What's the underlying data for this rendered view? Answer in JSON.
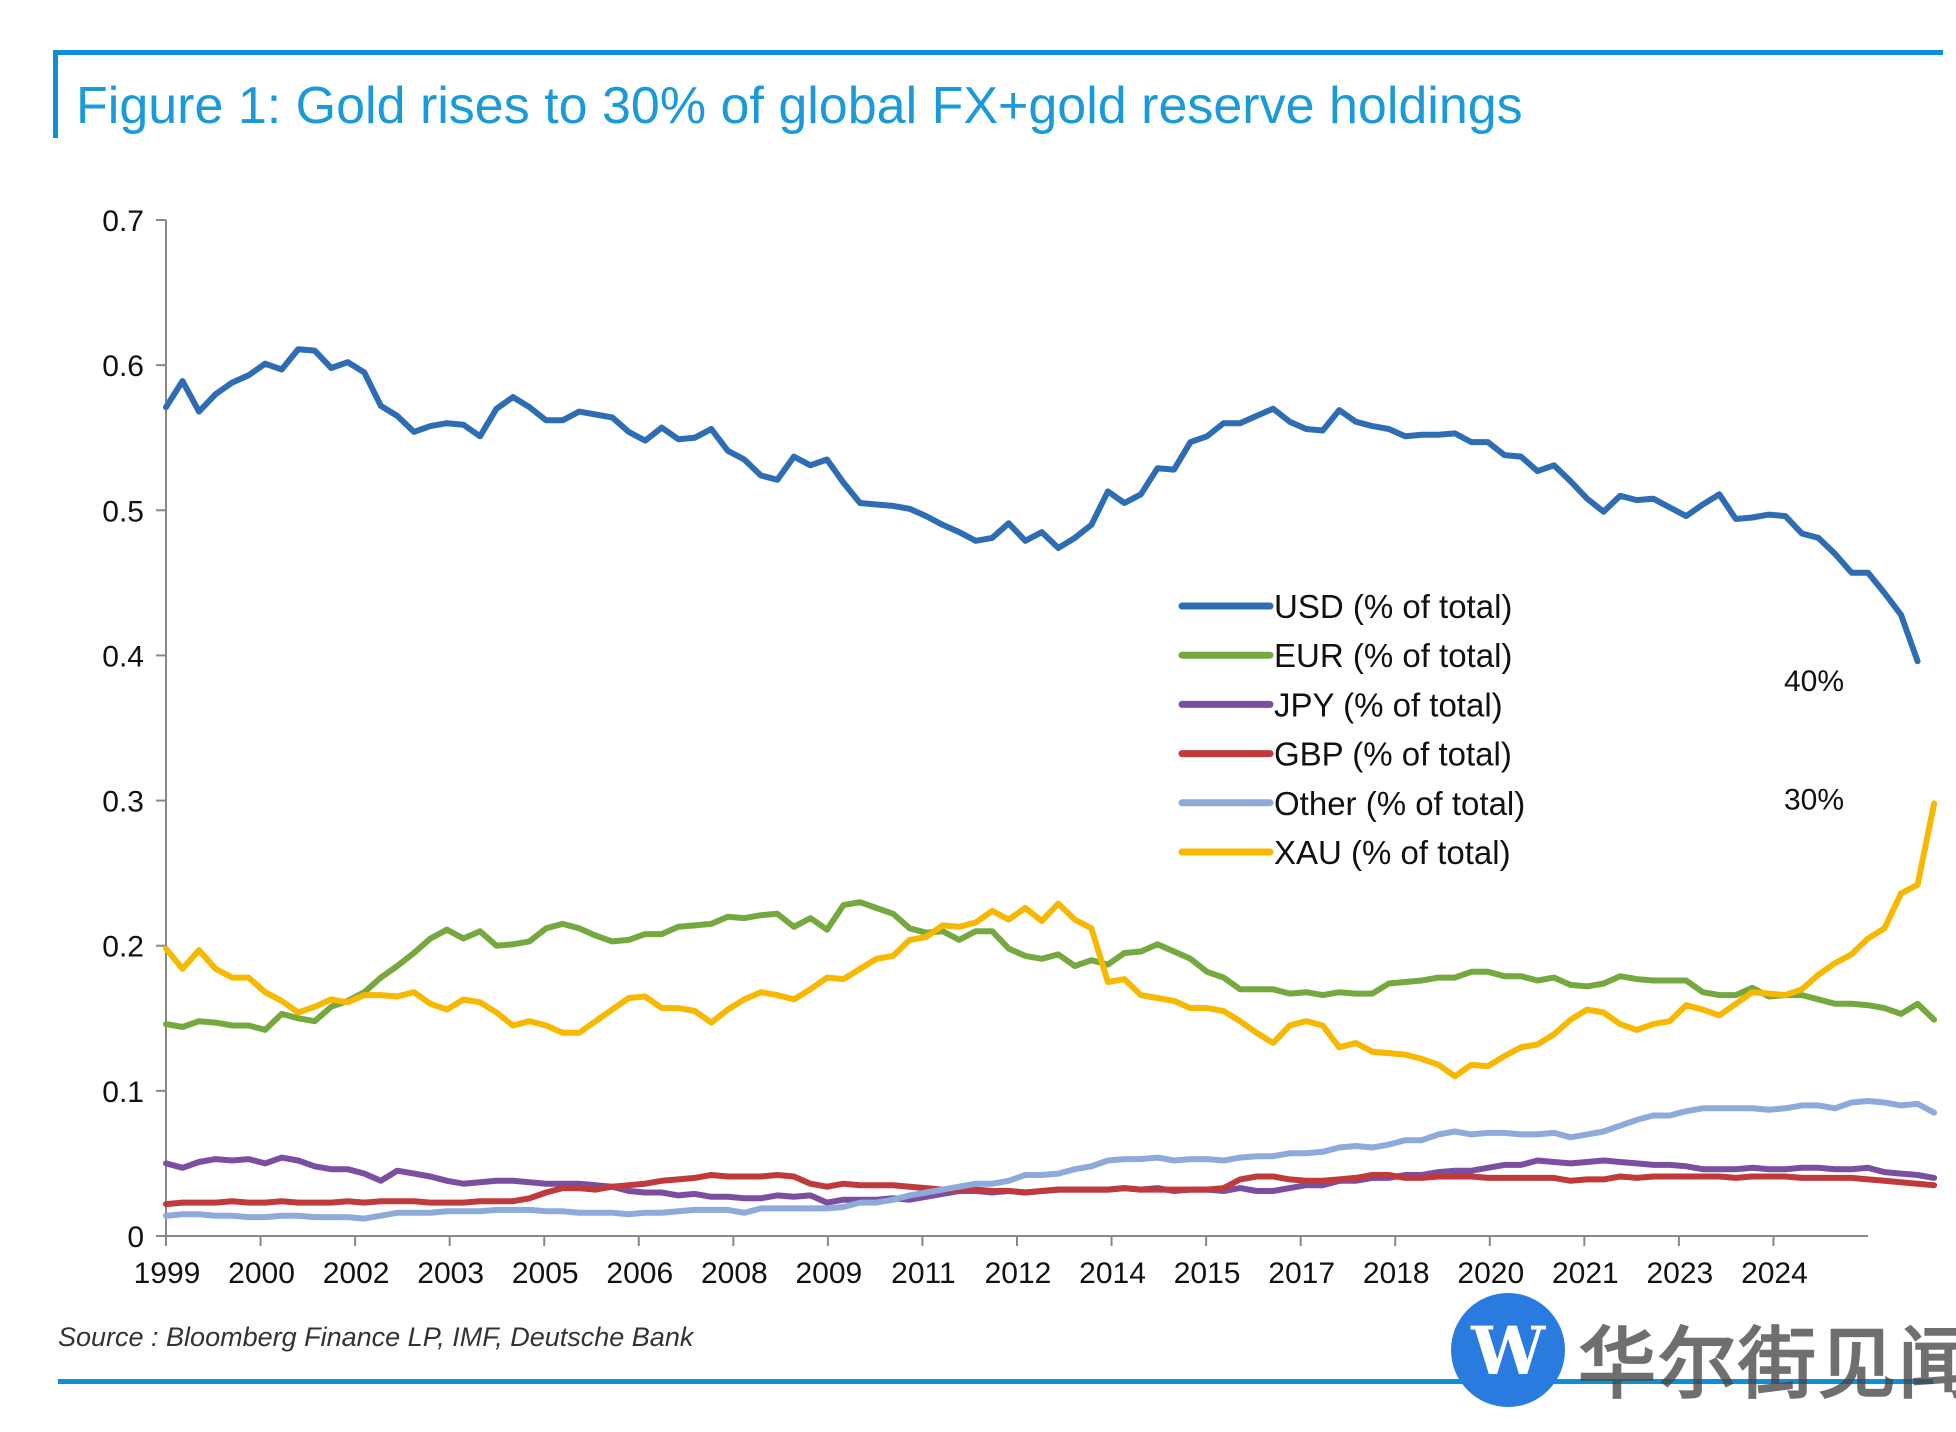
{
  "title": "Figure 1: Gold rises to 30% of global FX+gold reserve holdings",
  "source": "Source : Bloomberg Finance LP, IMF, Deutsche Bank",
  "watermark": {
    "text": "华尔街见闻",
    "logo_letter": "W",
    "color": "#2a7be0"
  },
  "colors": {
    "frame": "#0f8fd6",
    "title": "#1a9ad9"
  },
  "annotations": [
    {
      "text": "40%",
      "series": "USD (% of total)",
      "x": 2024.75
    },
    {
      "text": "30%",
      "series": "XAU (% of total)",
      "x": 2024.75
    }
  ],
  "chart_data": {
    "type": "line",
    "title": "",
    "xlabel": "",
    "ylabel": "",
    "ylim": [
      0,
      0.7
    ],
    "y_ticks": [
      "0",
      "0.1",
      "0.2",
      "0.3",
      "0.4",
      "0.5",
      "0.6",
      "0.7"
    ],
    "x_tick_labels": [
      "1999",
      "2000",
      "2002",
      "2003",
      "2005",
      "2006",
      "2008",
      "2009",
      "2011",
      "2012",
      "2014",
      "2015",
      "2017",
      "2018",
      "2020",
      "2021",
      "2023",
      "2024"
    ],
    "grid": false,
    "legend_position": "center-right",
    "x_range": [
      1999.0,
      2024.75
    ],
    "x_start": 1999.0,
    "x_step": 0.25,
    "series": [
      {
        "name": "USD (% of total)",
        "color": "#2e6db4",
        "values": [
          0.571,
          0.589,
          0.568,
          0.58,
          0.588,
          0.593,
          0.601,
          0.597,
          0.611,
          0.61,
          0.598,
          0.602,
          0.595,
          0.572,
          0.565,
          0.554,
          0.558,
          0.56,
          0.559,
          0.551,
          0.57,
          0.578,
          0.571,
          0.562,
          0.562,
          0.568,
          0.566,
          0.564,
          0.554,
          0.548,
          0.557,
          0.549,
          0.55,
          0.556,
          0.541,
          0.535,
          0.524,
          0.521,
          0.537,
          0.531,
          0.535,
          0.519,
          0.505,
          0.504,
          0.503,
          0.501,
          0.496,
          0.49,
          0.485,
          0.479,
          0.481,
          0.491,
          0.479,
          0.485,
          0.474,
          0.481,
          0.49,
          0.513,
          0.505,
          0.511,
          0.529,
          0.528,
          0.547,
          0.551,
          0.56,
          0.56,
          0.565,
          0.57,
          0.561,
          0.556,
          0.555,
          0.569,
          0.561,
          0.558,
          0.556,
          0.551,
          0.552,
          0.552,
          0.553,
          0.547,
          0.547,
          0.538,
          0.537,
          0.527,
          0.531,
          0.52,
          0.508,
          0.499,
          0.51,
          0.507,
          0.508,
          0.502,
          0.496,
          0.504,
          0.511,
          0.494,
          0.495,
          0.497,
          0.496,
          0.484,
          0.481,
          0.47,
          0.457,
          0.457,
          0.443,
          0.428,
          0.396
        ]
      },
      {
        "name": "EUR (% of total)",
        "color": "#76a840",
        "values": [
          0.146,
          0.144,
          0.148,
          0.147,
          0.145,
          0.145,
          0.142,
          0.153,
          0.15,
          0.148,
          0.158,
          0.162,
          0.168,
          0.178,
          0.186,
          0.195,
          0.205,
          0.211,
          0.205,
          0.21,
          0.2,
          0.201,
          0.203,
          0.212,
          0.215,
          0.212,
          0.207,
          0.203,
          0.204,
          0.208,
          0.208,
          0.213,
          0.214,
          0.215,
          0.22,
          0.219,
          0.221,
          0.222,
          0.213,
          0.219,
          0.211,
          0.228,
          0.23,
          0.226,
          0.222,
          0.212,
          0.209,
          0.21,
          0.204,
          0.21,
          0.21,
          0.198,
          0.193,
          0.191,
          0.194,
          0.186,
          0.19,
          0.187,
          0.195,
          0.196,
          0.201,
          0.196,
          0.191,
          0.182,
          0.178,
          0.17,
          0.17,
          0.17,
          0.167,
          0.168,
          0.166,
          0.168,
          0.167,
          0.167,
          0.174,
          0.175,
          0.176,
          0.178,
          0.178,
          0.182,
          0.182,
          0.179,
          0.179,
          0.176,
          0.178,
          0.173,
          0.172,
          0.174,
          0.179,
          0.177,
          0.176,
          0.176,
          0.176,
          0.168,
          0.166,
          0.166,
          0.171,
          0.165,
          0.166,
          0.166,
          0.163,
          0.16,
          0.16,
          0.159,
          0.157,
          0.153,
          0.16,
          0.149
        ]
      },
      {
        "name": "JPY (% of total)",
        "color": "#7b4fa0",
        "values": [
          0.05,
          0.047,
          0.051,
          0.053,
          0.052,
          0.053,
          0.05,
          0.054,
          0.052,
          0.048,
          0.046,
          0.046,
          0.043,
          0.038,
          0.045,
          0.043,
          0.041,
          0.038,
          0.036,
          0.037,
          0.038,
          0.038,
          0.037,
          0.036,
          0.036,
          0.036,
          0.035,
          0.034,
          0.031,
          0.03,
          0.03,
          0.028,
          0.029,
          0.027,
          0.027,
          0.026,
          0.026,
          0.028,
          0.027,
          0.028,
          0.023,
          0.025,
          0.025,
          0.025,
          0.026,
          0.025,
          0.027,
          0.029,
          0.031,
          0.031,
          0.03,
          0.031,
          0.03,
          0.031,
          0.032,
          0.032,
          0.032,
          0.032,
          0.033,
          0.032,
          0.033,
          0.031,
          0.032,
          0.032,
          0.031,
          0.033,
          0.031,
          0.031,
          0.033,
          0.035,
          0.035,
          0.038,
          0.038,
          0.04,
          0.04,
          0.042,
          0.042,
          0.044,
          0.045,
          0.045,
          0.047,
          0.049,
          0.049,
          0.052,
          0.051,
          0.05,
          0.051,
          0.052,
          0.051,
          0.05,
          0.049,
          0.049,
          0.048,
          0.046,
          0.046,
          0.046,
          0.047,
          0.046,
          0.046,
          0.047,
          0.047,
          0.046,
          0.046,
          0.047,
          0.044,
          0.043,
          0.042,
          0.04
        ]
      },
      {
        "name": "GBP (% of total)",
        "color": "#c0393c",
        "values": [
          0.022,
          0.023,
          0.023,
          0.023,
          0.024,
          0.023,
          0.023,
          0.024,
          0.023,
          0.023,
          0.023,
          0.024,
          0.023,
          0.024,
          0.024,
          0.024,
          0.023,
          0.023,
          0.023,
          0.024,
          0.024,
          0.024,
          0.026,
          0.03,
          0.033,
          0.033,
          0.032,
          0.034,
          0.035,
          0.036,
          0.038,
          0.039,
          0.04,
          0.042,
          0.041,
          0.041,
          0.041,
          0.042,
          0.041,
          0.036,
          0.034,
          0.036,
          0.035,
          0.035,
          0.035,
          0.034,
          0.033,
          0.032,
          0.032,
          0.032,
          0.031,
          0.031,
          0.03,
          0.031,
          0.032,
          0.032,
          0.032,
          0.032,
          0.033,
          0.032,
          0.032,
          0.032,
          0.032,
          0.032,
          0.033,
          0.039,
          0.041,
          0.041,
          0.039,
          0.038,
          0.038,
          0.039,
          0.04,
          0.042,
          0.042,
          0.04,
          0.04,
          0.041,
          0.041,
          0.041,
          0.04,
          0.04,
          0.04,
          0.04,
          0.04,
          0.038,
          0.039,
          0.039,
          0.041,
          0.04,
          0.041,
          0.041,
          0.041,
          0.041,
          0.041,
          0.04,
          0.041,
          0.041,
          0.041,
          0.04,
          0.04,
          0.04,
          0.04,
          0.039,
          0.038,
          0.037,
          0.036,
          0.035
        ]
      },
      {
        "name": "Other (% of total)",
        "color": "#8eaadb",
        "values": [
          0.014,
          0.015,
          0.015,
          0.014,
          0.014,
          0.013,
          0.013,
          0.014,
          0.014,
          0.013,
          0.013,
          0.013,
          0.012,
          0.014,
          0.016,
          0.016,
          0.016,
          0.017,
          0.017,
          0.017,
          0.018,
          0.018,
          0.018,
          0.017,
          0.017,
          0.016,
          0.016,
          0.016,
          0.015,
          0.016,
          0.016,
          0.017,
          0.018,
          0.018,
          0.018,
          0.016,
          0.019,
          0.019,
          0.019,
          0.019,
          0.019,
          0.02,
          0.023,
          0.023,
          0.025,
          0.028,
          0.03,
          0.032,
          0.034,
          0.036,
          0.036,
          0.038,
          0.042,
          0.042,
          0.043,
          0.046,
          0.048,
          0.052,
          0.053,
          0.053,
          0.054,
          0.052,
          0.053,
          0.053,
          0.052,
          0.054,
          0.055,
          0.055,
          0.057,
          0.057,
          0.058,
          0.061,
          0.062,
          0.061,
          0.063,
          0.066,
          0.066,
          0.07,
          0.072,
          0.07,
          0.071,
          0.071,
          0.07,
          0.07,
          0.071,
          0.068,
          0.07,
          0.072,
          0.076,
          0.08,
          0.083,
          0.083,
          0.086,
          0.088,
          0.088,
          0.088,
          0.088,
          0.087,
          0.088,
          0.09,
          0.09,
          0.088,
          0.092,
          0.093,
          0.092,
          0.09,
          0.091,
          0.085
        ]
      },
      {
        "name": "XAU (% of total)",
        "color": "#f7b800",
        "values": [
          0.198,
          0.184,
          0.197,
          0.184,
          0.178,
          0.178,
          0.168,
          0.162,
          0.154,
          0.158,
          0.163,
          0.161,
          0.166,
          0.166,
          0.165,
          0.168,
          0.16,
          0.156,
          0.163,
          0.161,
          0.154,
          0.145,
          0.148,
          0.145,
          0.14,
          0.14,
          0.148,
          0.156,
          0.164,
          0.165,
          0.157,
          0.157,
          0.155,
          0.147,
          0.156,
          0.163,
          0.168,
          0.166,
          0.163,
          0.17,
          0.178,
          0.177,
          0.184,
          0.191,
          0.193,
          0.204,
          0.206,
          0.214,
          0.213,
          0.216,
          0.224,
          0.218,
          0.226,
          0.217,
          0.229,
          0.218,
          0.212,
          0.175,
          0.177,
          0.166,
          0.164,
          0.162,
          0.157,
          0.157,
          0.155,
          0.148,
          0.14,
          0.133,
          0.145,
          0.148,
          0.145,
          0.13,
          0.133,
          0.127,
          0.126,
          0.125,
          0.122,
          0.118,
          0.11,
          0.118,
          0.117,
          0.124,
          0.13,
          0.132,
          0.139,
          0.149,
          0.156,
          0.154,
          0.146,
          0.142,
          0.146,
          0.148,
          0.159,
          0.156,
          0.152,
          0.16,
          0.168,
          0.167,
          0.166,
          0.17,
          0.18,
          0.188,
          0.194,
          0.205,
          0.212,
          0.236,
          0.242,
          0.298
        ]
      }
    ]
  }
}
